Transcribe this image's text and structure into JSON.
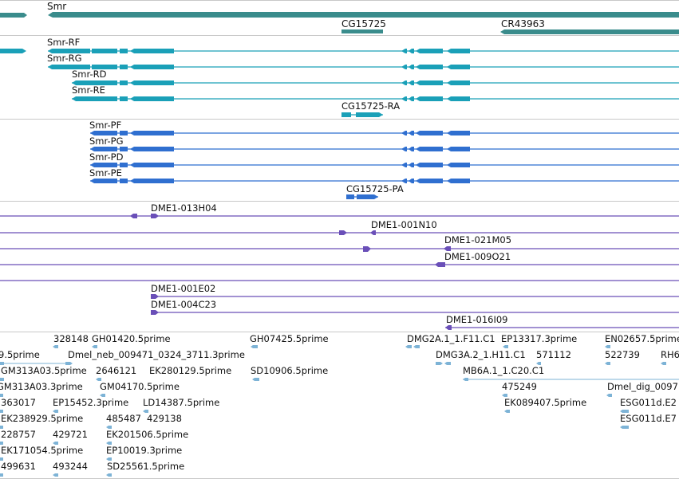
{
  "colors": {
    "gene": "#3a8c8c",
    "transcript": "#1aa0b8",
    "protein": "#2f6fd0",
    "clone": "#6a4fb8",
    "est": "#7db3d6",
    "divider": "#c8c8c8"
  },
  "genes": [
    {
      "label": "Smr"
    },
    {
      "label": "CG15725"
    },
    {
      "label": "CR43963"
    }
  ],
  "transcripts": [
    {
      "label": "Smr-RF"
    },
    {
      "label": "Smr-RG"
    },
    {
      "label": "Smr-RD"
    },
    {
      "label": "Smr-RE"
    },
    {
      "label": "CG15725-RA"
    }
  ],
  "proteins": [
    {
      "label": "Smr-PF"
    },
    {
      "label": "Smr-PG"
    },
    {
      "label": "Smr-PD"
    },
    {
      "label": "Smr-PE"
    },
    {
      "label": "CG15725-PA"
    }
  ],
  "clones": [
    {
      "label": "DME1-013H04"
    },
    {
      "label": "DME1-001N10"
    },
    {
      "label": "DME1-021M05"
    },
    {
      "label": "DME1-009O21"
    },
    {
      "label": "DME1-001E02"
    },
    {
      "label": "DME1-004C23"
    },
    {
      "label": "DME1-016I09"
    }
  ],
  "ests": [
    {
      "label": "328148"
    },
    {
      "label": "GH01420.5prime"
    },
    {
      "label": "GH07425.5prime"
    },
    {
      "label": "DMG2A.1_1.F11.C1"
    },
    {
      "label": "EP13317.3prime"
    },
    {
      "label": "EN02657.5prime"
    },
    {
      "label": "9.5prime"
    },
    {
      "label": "Dmel_neb_009471_0324_3711.3prime"
    },
    {
      "label": "DMG3A.2_1.H11.C1"
    },
    {
      "label": "571112"
    },
    {
      "label": "522739"
    },
    {
      "label": "RH6"
    },
    {
      "label": "GM313A03.5prime"
    },
    {
      "label": "2646121"
    },
    {
      "label": "EK280129.5prime"
    },
    {
      "label": "SD10906.5prime"
    },
    {
      "label": "MB6A.1_1.C20.C1"
    },
    {
      "label": "GM313A03.3prime"
    },
    {
      "label": "GM04170.5prime"
    },
    {
      "label": "475249"
    },
    {
      "label": "Dmel_dig_0097"
    },
    {
      "label": "363017"
    },
    {
      "label": "EP15452.3prime"
    },
    {
      "label": "LD14387.5prime"
    },
    {
      "label": "EK089407.5prime"
    },
    {
      "label": "ESG011d.E2"
    },
    {
      "label": "EK238929.5prime"
    },
    {
      "label": "485487"
    },
    {
      "label": "429138"
    },
    {
      "label": "ESG011d.E7"
    },
    {
      "label": "228757"
    },
    {
      "label": "429721"
    },
    {
      "label": "EK201506.5prime"
    },
    {
      "label": "EK171054.5prime"
    },
    {
      "label": "EP10019.3prime"
    },
    {
      "label": "499631"
    },
    {
      "label": "493244"
    },
    {
      "label": "SD25561.5prime"
    }
  ]
}
